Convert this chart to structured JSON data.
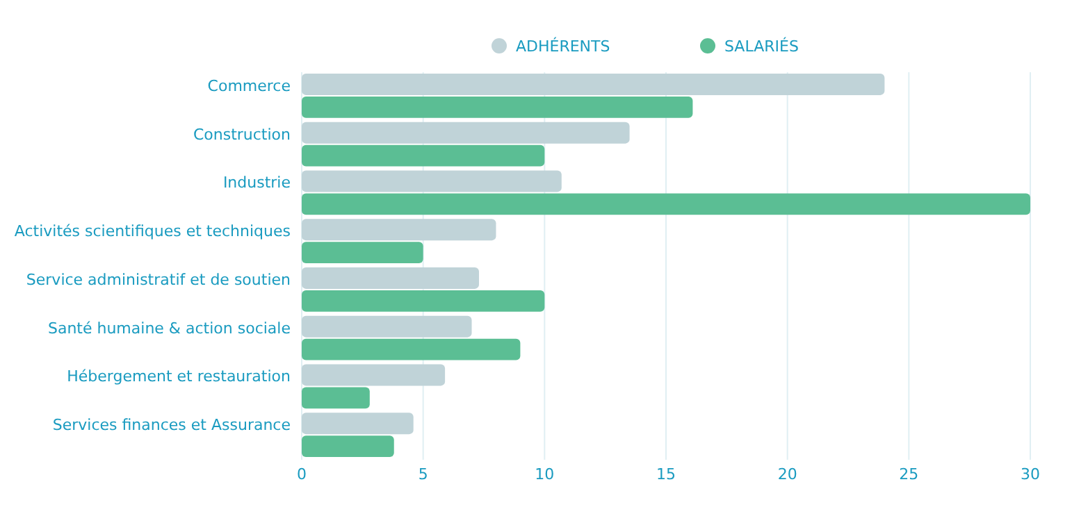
{
  "chart_data": {
    "type": "bar",
    "orientation": "horizontal",
    "categories": [
      "Commerce",
      "Construction",
      "Industrie",
      "Activités scientifiques et techniques",
      "Service administratif et de soutien",
      "Santé humaine & action sociale",
      "Hébergement et restauration",
      "Services finances et Assurance"
    ],
    "series": [
      {
        "name": "ADHÉRENTS",
        "color": "#c0d3d8",
        "values": [
          24,
          13.5,
          10.7,
          8,
          7.3,
          7,
          5.9,
          4.6
        ]
      },
      {
        "name": "SALARIÉS",
        "color": "#5bbe94",
        "values": [
          16.1,
          10,
          30,
          5,
          10,
          9,
          2.8,
          3.8
        ]
      }
    ],
    "xlim": [
      0,
      30
    ],
    "xticks": [
      0,
      5,
      10,
      15,
      20,
      25,
      30
    ],
    "grid": "x",
    "legend": "top"
  }
}
